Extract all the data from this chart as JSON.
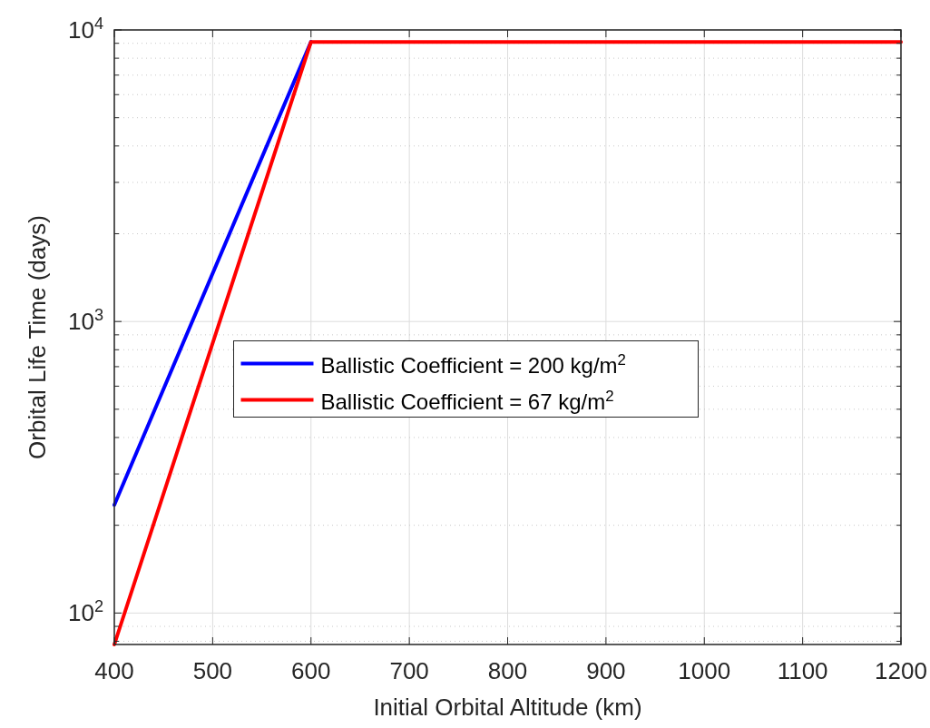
{
  "chart_data": {
    "type": "line",
    "xlabel": "Initial Orbital Altitude (km)",
    "ylabel": "Orbital Life Time (days)",
    "log": "y",
    "xlim": [
      400,
      1200
    ],
    "xticks": [
      400,
      500,
      600,
      700,
      800,
      900,
      1000,
      1100,
      1200
    ],
    "ylim": [
      78,
      10000
    ],
    "yticks": [
      {
        "value": 80,
        "label": null
      },
      {
        "value": 90,
        "label": null
      },
      {
        "value": 100,
        "label": "10$^{2}$"
      },
      {
        "value": 200,
        "label": null
      },
      {
        "value": 300,
        "label": null
      },
      {
        "value": 400,
        "label": null
      },
      {
        "value": 500,
        "label": null
      },
      {
        "value": 600,
        "label": null
      },
      {
        "value": 700,
        "label": null
      },
      {
        "value": 800,
        "label": null
      },
      {
        "value": 900,
        "label": null
      },
      {
        "value": 1000,
        "label": "10$^{3}$"
      },
      {
        "value": 2000,
        "label": null
      },
      {
        "value": 3000,
        "label": null
      },
      {
        "value": 4000,
        "label": null
      },
      {
        "value": 5000,
        "label": null
      },
      {
        "value": 6000,
        "label": null
      },
      {
        "value": 7000,
        "label": null
      },
      {
        "value": 8000,
        "label": null
      },
      {
        "value": 9000,
        "label": null
      },
      {
        "value": 10000,
        "label": "10$^{4}$"
      }
    ],
    "grid": true,
    "legend": "center",
    "line_style": "solid",
    "marker": "none",
    "series": [
      {
        "name": "Ballistic Coefficient = 200 kg/m$^{2}$",
        "color": "#0000ff",
        "x": [
          400,
          600
        ],
        "values": [
          235,
          9100
        ]
      },
      {
        "name": "Ballistic Coefficient = 67 kg/m$^{2}$",
        "color": "#ff0000",
        "x": [
          400,
          600,
          1200
        ],
        "values": [
          78,
          9100,
          9100
        ]
      }
    ]
  }
}
